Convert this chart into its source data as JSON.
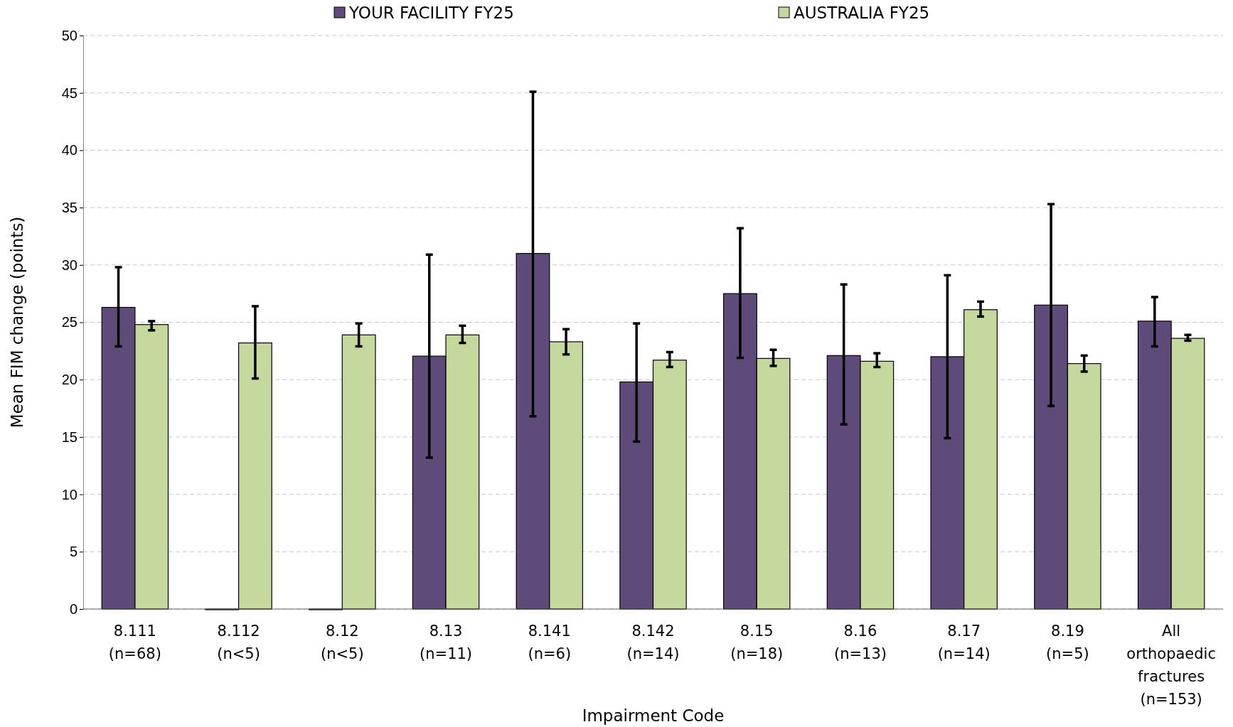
{
  "chart_data": {
    "type": "bar",
    "xlabel": "Impairment Code",
    "ylabel": "Mean FIM change (points)",
    "categories": [
      "8.111\n(n=68)",
      "8.112\n(n<5)",
      "8.12\n(n<5)",
      "8.13\n(n=11)",
      "8.141\n(n=6)",
      "8.142\n(n=14)",
      "8.15\n(n=18)",
      "8.16\n(n=13)",
      "8.17\n(n=14)",
      "8.19\n(n=5)",
      "All\northopaedic\nfractures\n(n=153)"
    ],
    "series": [
      {
        "name": "YOUR FACILITY FY25",
        "color": "#5e4b7a",
        "values": [
          26.3,
          0,
          0,
          22.05,
          31.0,
          19.8,
          27.5,
          22.1,
          22.0,
          26.5,
          25.1
        ],
        "errors": [
          [
            22.9,
            29.8
          ],
          null,
          null,
          [
            13.2,
            30.9
          ],
          [
            16.8,
            45.1
          ],
          [
            14.6,
            24.9
          ],
          [
            21.9,
            33.2
          ],
          [
            16.1,
            28.3
          ],
          [
            14.9,
            29.1
          ],
          [
            17.7,
            35.3
          ],
          [
            22.9,
            27.2
          ]
        ]
      },
      {
        "name": "AUSTRALIA FY25",
        "color": "#c5d89d",
        "values": [
          24.8,
          23.2,
          23.9,
          23.9,
          23.3,
          21.7,
          21.85,
          21.6,
          26.1,
          21.4,
          23.6
        ],
        "errors": [
          [
            24.3,
            25.1
          ],
          [
            20.1,
            26.4
          ],
          [
            22.9,
            24.9
          ],
          [
            23.2,
            24.7
          ],
          [
            22.2,
            24.4
          ],
          [
            21.1,
            22.4
          ],
          [
            21.2,
            22.6
          ],
          [
            21.1,
            22.3
          ],
          [
            25.5,
            26.8
          ],
          [
            20.7,
            22.1
          ],
          [
            23.4,
            23.9
          ]
        ]
      }
    ],
    "ylim": [
      0,
      50
    ],
    "yticks": [
      0,
      5,
      10,
      15,
      20,
      25,
      30,
      35,
      40,
      45,
      50
    ],
    "grid": "y",
    "legend": "top"
  }
}
